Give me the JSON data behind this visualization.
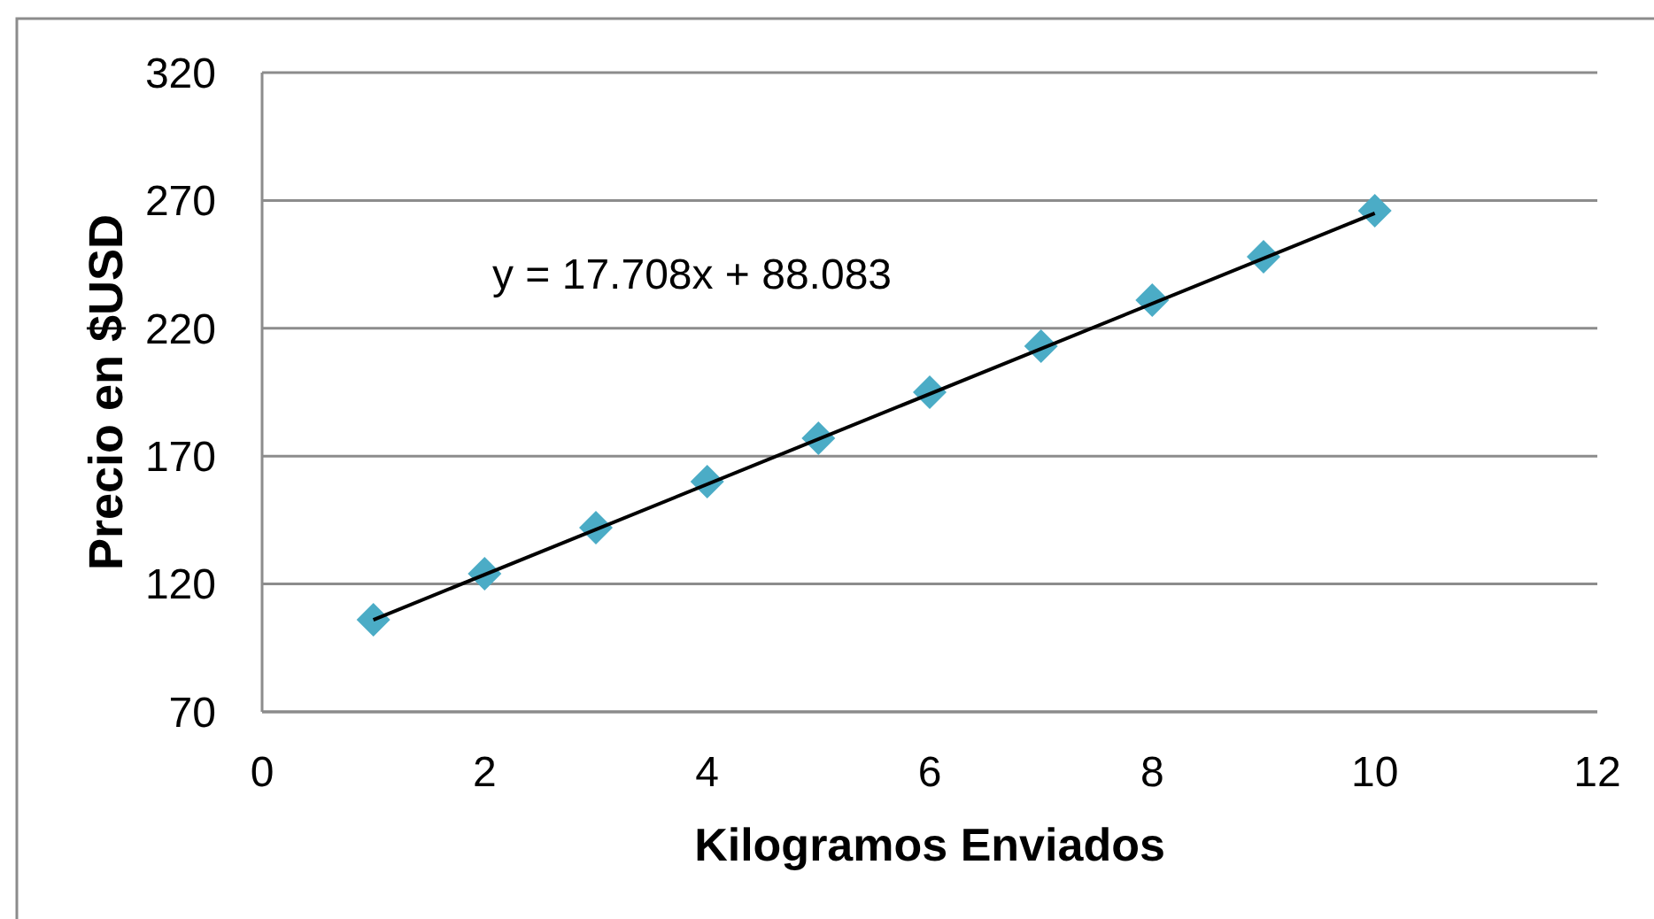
{
  "chart_data": {
    "type": "scatter",
    "xlabel": "Kilogramos Enviados",
    "ylabel": "Precio en $USD",
    "annotations": [
      "y = 17.708x + 88.083"
    ],
    "xlim": [
      0,
      12
    ],
    "xticks": [
      0,
      2,
      4,
      6,
      8,
      10,
      12
    ],
    "ylim": [
      70,
      320
    ],
    "yticks": [
      70,
      120,
      170,
      220,
      270,
      320
    ],
    "grid": "y",
    "marker": "diamond",
    "series": [
      {
        "color": "#4bacc6",
        "x": [
          1,
          2,
          3,
          4,
          5,
          6,
          7,
          8,
          9,
          10
        ],
        "values": [
          106,
          124,
          142,
          160,
          177,
          195,
          213,
          231,
          248,
          266
        ]
      },
      {
        "type": "line",
        "color": "#000000",
        "marker": "none",
        "x": [
          1,
          10
        ],
        "values": [
          106,
          265
        ]
      }
    ]
  }
}
